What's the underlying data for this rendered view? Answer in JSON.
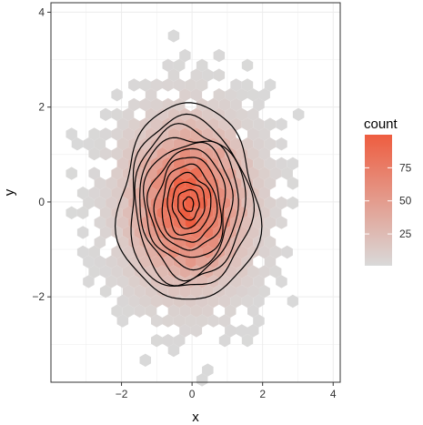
{
  "chart_data": {
    "type": "hexbin",
    "xlabel": "x",
    "ylabel": "y",
    "xlim": [
      -4.0,
      4.2
    ],
    "ylim": [
      -3.8,
      4.2
    ],
    "x_ticks": [
      -2,
      0,
      2,
      4
    ],
    "y_ticks": [
      -2,
      0,
      2,
      4
    ],
    "x_tick_labels": [
      "−2",
      "0",
      "2",
      "4"
    ],
    "y_tick_labels": [
      "−2",
      "0",
      "2",
      "4"
    ],
    "grid": true,
    "panel_border": true,
    "fill": {
      "legend_title": "count",
      "low": 1,
      "high": 100,
      "low_color": "#d9d9d9",
      "high_color": "#ee5d40",
      "breaks": [
        25,
        50,
        75
      ],
      "break_labels": [
        "25",
        "50",
        "75"
      ]
    },
    "density_center": {
      "x": -0.1,
      "y": -0.05
    },
    "density_spread": {
      "x": 1.0,
      "y": 1.0
    },
    "contour_levels": [
      0.5,
      1.0,
      1.3,
      1.6,
      1.9,
      2.2,
      2.5,
      2.8,
      3.1,
      3.4,
      3.7,
      4.0
    ]
  },
  "colors": {
    "contour": "#000000",
    "grid": "#ececec",
    "border": "#333333"
  }
}
